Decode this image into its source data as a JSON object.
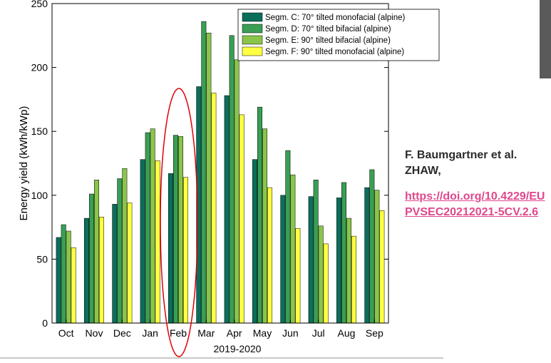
{
  "chart_data": {
    "type": "bar",
    "categories": [
      "Oct",
      "Nov",
      "Dec",
      "Jan",
      "Feb",
      "Mar",
      "Apr",
      "May",
      "Jun",
      "Jul",
      "Aug",
      "Sep"
    ],
    "series": [
      {
        "name": "Segm. C: 70° tilted monofacial (alpine)",
        "color": "#0a6e5a",
        "values": [
          67,
          82,
          93,
          128,
          117,
          185,
          178,
          128,
          100,
          99,
          98,
          106
        ]
      },
      {
        "name": "Segm. D: 70° tilted bifacial (alpine)",
        "color": "#3a9e54",
        "values": [
          77,
          101,
          113,
          149,
          147,
          236,
          225,
          169,
          135,
          112,
          110,
          120
        ]
      },
      {
        "name": "Segm. E: 90° tilted bifacial (alpine)",
        "color": "#8ac54a",
        "values": [
          72,
          112,
          121,
          152,
          146,
          227,
          206,
          152,
          116,
          76,
          82,
          104
        ]
      },
      {
        "name": "Segm. F: 90° tilted monofacial (alpine)",
        "color": "#ffff44",
        "values": [
          59,
          83,
          94,
          127,
          114,
          180,
          163,
          106,
          74,
          62,
          68,
          88
        ]
      }
    ],
    "xlabel": "2019-2020",
    "ylabel": "Energy yield (kWh/kWp)",
    "ylim": [
      0,
      250
    ],
    "yticks": [
      0,
      50,
      100,
      150,
      200,
      250
    ],
    "legend": "top-right",
    "grid": false,
    "annotation": {
      "shape": "ellipse",
      "target": "Feb",
      "color": "#e00000"
    }
  },
  "side_note": {
    "author": "F. Baumgartner et al. ZHAW,",
    "doi": "https://doi.org/10.4229/EUPVSEC20212021-5CV.2.6"
  }
}
